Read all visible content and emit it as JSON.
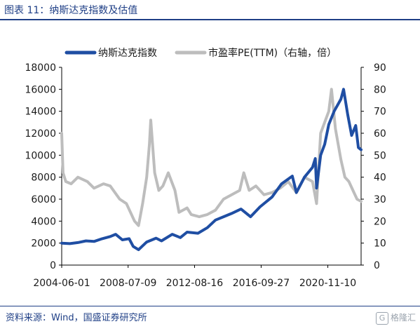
{
  "figure_title": "图表 11：纳斯达克指数及估值",
  "source_note": "资料来源：Wind，国盛证券研究所",
  "watermark": {
    "icon": "G",
    "text": "格隆汇"
  },
  "colors": {
    "index": "#1f4ea3",
    "pe": "#bdbdbd",
    "accent": "#1f3f86"
  },
  "chart_data": {
    "type": "line",
    "legend_position": "top",
    "grid": false,
    "x_tick_labels": [
      "2004-06-01",
      "2008-07-09",
      "2012-08-16",
      "2016-09-27",
      "2020-11-10"
    ],
    "x_range": [
      "2004-06-01",
      "2022-12-01"
    ],
    "left_axis": {
      "ylim": [
        0,
        18000
      ],
      "ticks": [
        "0",
        "2000",
        "4000",
        "6000",
        "8000",
        "10000",
        "12000",
        "14000",
        "16000",
        "18000"
      ]
    },
    "right_axis": {
      "ylim": [
        0,
        90
      ],
      "ticks": [
        "0",
        "10",
        "20",
        "30",
        "40",
        "50",
        "60",
        "70",
        "80",
        "90"
      ]
    },
    "series": [
      {
        "name": "纳斯达克指数",
        "axis": "left",
        "points": [
          [
            "2004-06",
            2000
          ],
          [
            "2004-12",
            1950
          ],
          [
            "2005-06",
            2050
          ],
          [
            "2005-12",
            2200
          ],
          [
            "2006-06",
            2150
          ],
          [
            "2006-12",
            2400
          ],
          [
            "2007-06",
            2600
          ],
          [
            "2007-10",
            2800
          ],
          [
            "2008-03",
            2300
          ],
          [
            "2008-08",
            2400
          ],
          [
            "2008-11",
            1700
          ],
          [
            "2009-03",
            1400
          ],
          [
            "2009-09",
            2100
          ],
          [
            "2010-04",
            2450
          ],
          [
            "2010-08",
            2200
          ],
          [
            "2011-04",
            2800
          ],
          [
            "2011-10",
            2500
          ],
          [
            "2012-03",
            3000
          ],
          [
            "2012-11",
            2900
          ],
          [
            "2013-06",
            3400
          ],
          [
            "2013-12",
            4100
          ],
          [
            "2014-06",
            4400
          ],
          [
            "2014-12",
            4700
          ],
          [
            "2015-07",
            5100
          ],
          [
            "2016-02",
            4400
          ],
          [
            "2016-09",
            5300
          ],
          [
            "2017-06",
            6200
          ],
          [
            "2018-01",
            7400
          ],
          [
            "2018-09",
            8100
          ],
          [
            "2018-12",
            6600
          ],
          [
            "2019-06",
            8000
          ],
          [
            "2019-12",
            8900
          ],
          [
            "2020-02",
            9700
          ],
          [
            "2020-03",
            7000
          ],
          [
            "2020-06",
            10000
          ],
          [
            "2020-09",
            11000
          ],
          [
            "2020-12",
            12800
          ],
          [
            "2021-04",
            14000
          ],
          [
            "2021-09",
            15100
          ],
          [
            "2021-11",
            16000
          ],
          [
            "2022-02",
            13700
          ],
          [
            "2022-05",
            11800
          ],
          [
            "2022-08",
            12700
          ],
          [
            "2022-10",
            10700
          ],
          [
            "2022-12",
            10500
          ]
        ]
      },
      {
        "name": "市盈率PE(TTM)（右轴，倍）",
        "axis": "right",
        "points": [
          [
            "2004-06",
            60
          ],
          [
            "2004-07",
            42
          ],
          [
            "2004-09",
            38
          ],
          [
            "2005-01",
            37
          ],
          [
            "2005-06",
            40
          ],
          [
            "2006-01",
            38
          ],
          [
            "2006-06",
            35
          ],
          [
            "2007-01",
            37
          ],
          [
            "2007-06",
            36
          ],
          [
            "2008-01",
            30
          ],
          [
            "2008-06",
            28
          ],
          [
            "2008-12",
            20
          ],
          [
            "2009-03",
            18
          ],
          [
            "2009-06",
            28
          ],
          [
            "2009-09",
            40
          ],
          [
            "2009-11",
            55
          ],
          [
            "2009-12",
            66
          ],
          [
            "2010-03",
            42
          ],
          [
            "2010-06",
            34
          ],
          [
            "2010-09",
            36
          ],
          [
            "2011-01",
            42
          ],
          [
            "2011-06",
            34
          ],
          [
            "2011-09",
            24
          ],
          [
            "2012-03",
            26
          ],
          [
            "2012-06",
            23
          ],
          [
            "2012-12",
            22
          ],
          [
            "2013-06",
            23
          ],
          [
            "2013-12",
            25
          ],
          [
            "2014-06",
            30
          ],
          [
            "2014-12",
            32
          ],
          [
            "2015-06",
            34
          ],
          [
            "2015-09",
            42
          ],
          [
            "2016-01",
            34
          ],
          [
            "2016-06",
            36
          ],
          [
            "2016-12",
            32
          ],
          [
            "2017-06",
            33
          ],
          [
            "2017-12",
            35
          ],
          [
            "2018-06",
            38
          ],
          [
            "2018-12",
            33
          ],
          [
            "2019-06",
            40
          ],
          [
            "2019-12",
            38
          ],
          [
            "2020-03",
            28
          ],
          [
            "2020-06",
            60
          ],
          [
            "2020-09",
            65
          ],
          [
            "2020-12",
            70
          ],
          [
            "2021-02",
            80
          ],
          [
            "2021-05",
            62
          ],
          [
            "2021-09",
            48
          ],
          [
            "2021-12",
            40
          ],
          [
            "2022-03",
            38
          ],
          [
            "2022-06",
            34
          ],
          [
            "2022-09",
            30
          ],
          [
            "2022-12",
            29
          ]
        ]
      }
    ]
  }
}
